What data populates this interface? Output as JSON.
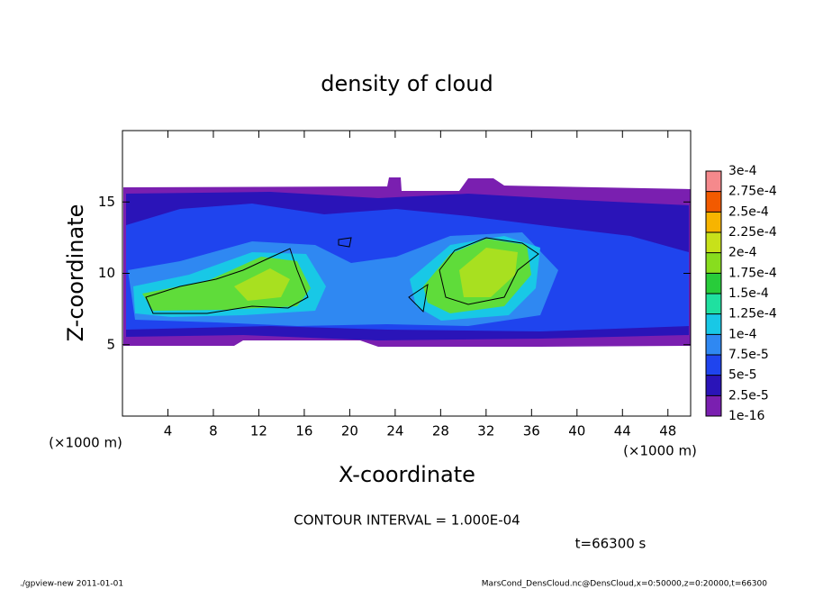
{
  "chart_data": {
    "type": "contour",
    "title": "density of cloud",
    "xlabel": "X-coordinate",
    "ylabel": "Z-coordinate",
    "x_unit": "(×1000 m)",
    "y_unit": "(×1000 m)",
    "annotation": "CONTOUR INTERVAL = 1.000E-04",
    "time_label": "t=66300 s",
    "footer_left": "./gpview-new   2011-01-01",
    "footer_right": "MarsCond_DensCloud.nc@DensCloud,x=0:50000,z=0:20000,t=66300",
    "xlim": [
      0,
      50
    ],
    "xticks": [
      4,
      8,
      12,
      16,
      20,
      24,
      28,
      32,
      36,
      40,
      44,
      48
    ],
    "ylim": [
      0,
      20
    ],
    "yticks": [
      5,
      10,
      15
    ],
    "colorbar_ticks": [
      {
        "value": 1e-16,
        "label": "1e-16"
      },
      {
        "value": 2.5e-05,
        "label": "2.5e-5"
      },
      {
        "value": 5e-05,
        "label": "5e-5"
      },
      {
        "value": 7.5e-05,
        "label": "7.5e-5"
      },
      {
        "value": 0.0001,
        "label": "1e-4"
      },
      {
        "value": 0.000125,
        "label": "1.25e-4"
      },
      {
        "value": 0.00015,
        "label": "1.5e-4"
      },
      {
        "value": 0.000175,
        "label": "1.75e-4"
      },
      {
        "value": 0.0002,
        "label": "2e-4"
      },
      {
        "value": 0.000225,
        "label": "2.25e-4"
      },
      {
        "value": 0.00025,
        "label": "2.5e-4"
      },
      {
        "value": 0.000275,
        "label": "2.75e-4"
      },
      {
        "value": 0.0003,
        "label": "3e-4"
      }
    ],
    "colors": [
      "#7a1fb0",
      "#2a14b8",
      "#1f44ee",
      "#2f88f2",
      "#18c8e6",
      "#1fe0a0",
      "#28cc3a",
      "#88dd1e",
      "#c8e11a",
      "#f7b400",
      "#f25a00",
      "#f5898c"
    ]
  }
}
